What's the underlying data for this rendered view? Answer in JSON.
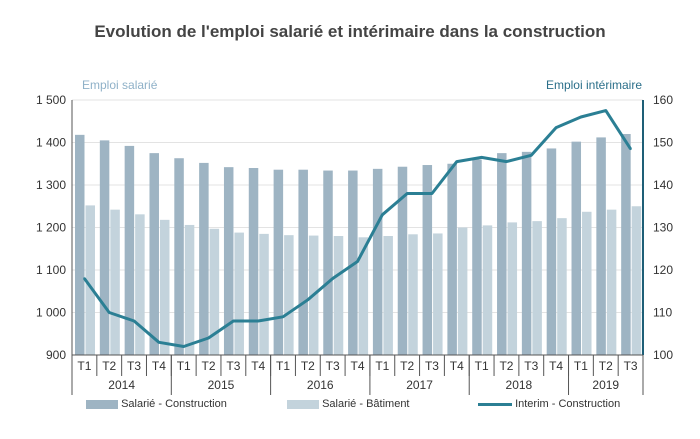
{
  "title": "Evolution de l'emploi salarié et intérimaire dans la construction",
  "axes": {
    "left_title": "Emploi salarié",
    "right_title": "Emploi intérimaire"
  },
  "colors": {
    "construction": "#9eb4c3",
    "batiment": "#c3d3dc",
    "interim": "#2b7f94",
    "text": "#333333",
    "axis": "#1e5f77"
  },
  "legend": [
    {
      "key": "construction",
      "label": "Salarié - Construction"
    },
    {
      "key": "batiment",
      "label": "Salarié - Bâtiment"
    },
    {
      "key": "interim",
      "label": "Interim - Construction"
    }
  ],
  "chart_data": {
    "type": "bar+line",
    "categories": [
      "T1",
      "T2",
      "T3",
      "T4",
      "T1",
      "T2",
      "T3",
      "T4",
      "T1",
      "T2",
      "T3",
      "T4",
      "T1",
      "T2",
      "T3",
      "T4",
      "T1",
      "T2",
      "T3",
      "T4",
      "T1",
      "T2",
      "T3"
    ],
    "years": [
      {
        "label": "2014",
        "count": 4
      },
      {
        "label": "2015",
        "count": 4
      },
      {
        "label": "2016",
        "count": 4
      },
      {
        "label": "2017",
        "count": 4
      },
      {
        "label": "2018",
        "count": 4
      },
      {
        "label": "2019",
        "count": 3
      }
    ],
    "ylim_left": [
      900,
      1500
    ],
    "yticks_left": [
      900,
      1000,
      1100,
      1200,
      1300,
      1400,
      1500
    ],
    "yticks_left_labels": [
      "900",
      "1 000",
      "1 100",
      "1 200",
      "1 300",
      "1 400",
      "1 500"
    ],
    "ylim_right": [
      100,
      160
    ],
    "yticks_right": [
      100,
      110,
      120,
      130,
      140,
      150,
      160
    ],
    "series": [
      {
        "name": "Salarié - Construction",
        "axis": "left",
        "kind": "bar",
        "values": [
          1418,
          1405,
          1392,
          1375,
          1363,
          1352,
          1342,
          1340,
          1336,
          1336,
          1334,
          1334,
          1338,
          1343,
          1347,
          1350,
          1360,
          1375,
          1378,
          1386,
          1402,
          1412,
          1420
        ]
      },
      {
        "name": "Salarié - Bâtiment",
        "axis": "left",
        "kind": "bar",
        "values": [
          1252,
          1242,
          1231,
          1218,
          1206,
          1197,
          1188,
          1185,
          1182,
          1181,
          1180,
          1177,
          1180,
          1184,
          1186,
          1200,
          1205,
          1212,
          1215,
          1222,
          1237,
          1242,
          1250
        ]
      },
      {
        "name": "Interim - Construction",
        "axis": "right",
        "kind": "line",
        "values": [
          118,
          110,
          108,
          103,
          102,
          104,
          108,
          108,
          109,
          113,
          118,
          122,
          133,
          138,
          138,
          145.5,
          146.5,
          145.5,
          147,
          153.5,
          156,
          157.5,
          148.5
        ]
      }
    ]
  }
}
